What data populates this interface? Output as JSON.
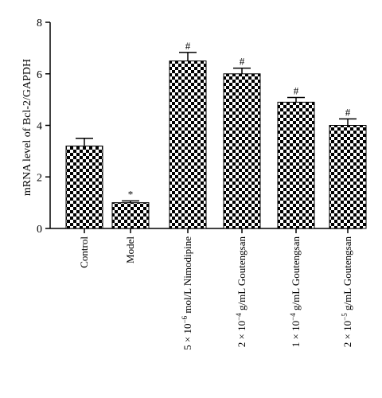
{
  "chart_data": {
    "type": "bar",
    "ylabel": "mRNA level of Bcl-2/GAPDH",
    "ylim": [
      0,
      8
    ],
    "yticks": [
      0,
      2,
      4,
      6,
      8
    ],
    "categories": [
      {
        "pre": "",
        "exp": "",
        "post": "Control"
      },
      {
        "pre": "",
        "exp": "",
        "post": "Model"
      },
      {
        "pre": "5 × 10",
        "exp": "−6",
        "post": " mol/L Nimodipine"
      },
      {
        "pre": "2 × 10",
        "exp": "−4",
        "post": " g/mL Goutengsan"
      },
      {
        "pre": "1 × 10",
        "exp": "−4",
        "post": " g/mL Goutengsan"
      },
      {
        "pre": "2 × 10",
        "exp": "−5",
        "post": " g/mL Goutengsan"
      }
    ],
    "values": [
      3.2,
      1.0,
      6.5,
      6.0,
      4.9,
      4.0
    ],
    "errors": [
      0.3,
      0.07,
      0.33,
      0.22,
      0.18,
      0.25
    ],
    "significance": [
      "",
      "*",
      "#",
      "#",
      "#",
      "#"
    ],
    "bar_pattern": "checkerboard",
    "colors": {
      "bar_dark": "#000000",
      "bar_light": "#ffffff",
      "axis": "#000000"
    }
  }
}
